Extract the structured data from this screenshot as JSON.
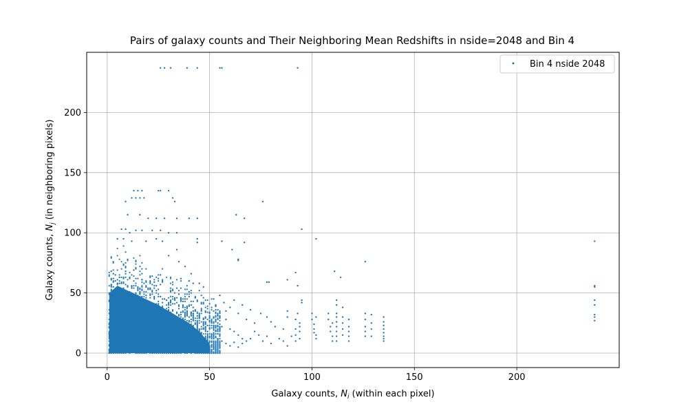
{
  "chart_data": {
    "type": "scatter",
    "title": "Pairs of galaxy counts and Their Neighboring Mean Redshifts in nside=2048 and Bin 4",
    "xlabel_main": "Galaxy counts, ",
    "xlabel_sym": "N",
    "xlabel_sub": "i",
    "xlabel_rest": " (within each pixel)",
    "ylabel_main": "Galaxy counts, ",
    "ylabel_sym": "N",
    "ylabel_sub": "j",
    "ylabel_rest": " (in neighboring pixels)",
    "xlim": [
      -10,
      250
    ],
    "ylim": [
      -12,
      250
    ],
    "xticks": [
      0,
      50,
      100,
      150,
      200
    ],
    "yticks": [
      0,
      50,
      100,
      150,
      200
    ],
    "grid": true,
    "legend_position": "top-right",
    "color": "#1f77b4",
    "series": [
      {
        "name": "Bin 4 nside 2048",
        "dense_regions": [
          {
            "x": [
              1,
              50
            ],
            "y": [
              0,
              "decreasing from 50 at x=1 to 0 at x=50"
            ],
            "note": "solid filled cloud"
          }
        ],
        "points": [
          [
            26,
            237
          ],
          [
            28,
            237
          ],
          [
            31,
            237
          ],
          [
            39,
            237
          ],
          [
            44,
            237
          ],
          [
            55,
            237
          ],
          [
            56,
            237
          ],
          [
            93,
            237
          ],
          [
            13,
            135
          ],
          [
            15,
            135
          ],
          [
            17,
            135
          ],
          [
            25,
            135
          ],
          [
            26,
            135
          ],
          [
            30,
            135
          ],
          [
            12,
            129
          ],
          [
            14,
            129
          ],
          [
            16,
            129
          ],
          [
            18,
            129
          ],
          [
            32,
            129
          ],
          [
            33,
            126
          ],
          [
            9,
            126
          ],
          [
            76,
            126
          ],
          [
            10,
            115
          ],
          [
            16,
            115
          ],
          [
            20,
            112
          ],
          [
            24,
            112
          ],
          [
            28,
            112
          ],
          [
            34,
            112
          ],
          [
            40,
            112
          ],
          [
            44,
            112
          ],
          [
            63,
            115
          ],
          [
            67,
            112
          ],
          [
            95,
            103
          ],
          [
            7,
            103
          ],
          [
            9,
            103
          ],
          [
            11,
            100
          ],
          [
            14,
            102
          ],
          [
            17,
            102
          ],
          [
            22,
            102
          ],
          [
            26,
            102
          ],
          [
            30,
            100
          ],
          [
            34,
            100
          ],
          [
            5,
            95
          ],
          [
            8,
            95
          ],
          [
            12,
            93
          ],
          [
            19,
            93
          ],
          [
            24,
            95
          ],
          [
            27,
            93
          ],
          [
            44,
            95
          ],
          [
            44,
            92
          ],
          [
            56,
            93
          ],
          [
            61,
            86
          ],
          [
            67,
            92
          ],
          [
            102,
            95
          ],
          [
            238,
            93
          ],
          [
            64,
            78
          ],
          [
            64,
            77
          ],
          [
            92,
            67
          ],
          [
            111,
            68
          ],
          [
            114,
            63
          ],
          [
            126,
            76
          ],
          [
            78,
            59
          ],
          [
            79,
            59
          ],
          [
            88,
            61
          ],
          [
            93,
            56
          ],
          [
            238,
            56
          ],
          [
            238,
            55
          ],
          [
            238,
            44
          ],
          [
            238,
            40
          ],
          [
            238,
            32
          ],
          [
            238,
            30
          ],
          [
            238,
            27
          ],
          [
            35,
            76
          ],
          [
            38,
            72
          ],
          [
            41,
            66
          ],
          [
            45,
            58
          ],
          [
            47,
            55
          ],
          [
            34,
            86
          ],
          [
            30,
            81
          ],
          [
            36,
            62
          ],
          [
            40,
            60
          ],
          [
            42,
            58
          ],
          [
            3,
            55
          ],
          [
            2,
            48
          ],
          [
            4,
            60
          ],
          [
            6,
            63
          ],
          [
            5,
            58
          ],
          [
            3,
            52
          ],
          [
            52,
            45
          ],
          [
            53,
            40
          ],
          [
            55,
            48
          ],
          [
            57,
            42
          ],
          [
            58,
            35
          ],
          [
            60,
            38
          ],
          [
            62,
            44
          ],
          [
            64,
            33
          ],
          [
            66,
            40
          ],
          [
            68,
            28
          ],
          [
            70,
            36
          ],
          [
            72,
            25
          ],
          [
            75,
            33
          ],
          [
            78,
            30
          ],
          [
            80,
            26
          ],
          [
            82,
            22
          ],
          [
            86,
            20
          ],
          [
            88,
            30
          ],
          [
            88,
            35
          ],
          [
            52,
            30
          ],
          [
            54,
            25
          ],
          [
            56,
            22
          ],
          [
            58,
            28
          ],
          [
            60,
            20
          ],
          [
            62,
            18
          ],
          [
            64,
            15
          ],
          [
            66,
            12
          ],
          [
            68,
            10
          ],
          [
            52,
            15
          ],
          [
            54,
            12
          ],
          [
            56,
            10
          ],
          [
            58,
            8
          ],
          [
            60,
            6
          ],
          [
            62,
            9
          ],
          [
            64,
            5
          ],
          [
            66,
            8
          ],
          [
            70,
            12
          ],
          [
            72,
            18
          ],
          [
            74,
            15
          ],
          [
            76,
            10
          ],
          [
            78,
            14
          ],
          [
            80,
            8
          ],
          [
            84,
            12
          ],
          [
            86,
            10
          ],
          [
            88,
            6
          ],
          [
            90,
            14
          ],
          [
            92,
            28
          ],
          [
            92,
            20
          ],
          [
            92,
            15
          ],
          [
            92,
            10
          ],
          [
            93,
            33
          ],
          [
            94,
            22
          ],
          [
            94,
            18
          ],
          [
            94,
            12
          ],
          [
            94,
            25
          ],
          [
            95,
            44
          ],
          [
            95,
            42
          ],
          [
            100,
            33
          ],
          [
            100,
            28
          ],
          [
            101,
            24
          ],
          [
            101,
            20
          ],
          [
            101,
            17
          ],
          [
            102,
            15
          ],
          [
            102,
            12
          ],
          [
            102,
            30
          ],
          [
            108,
            33
          ],
          [
            108,
            28
          ],
          [
            109,
            22
          ],
          [
            109,
            18
          ],
          [
            110,
            14
          ],
          [
            110,
            10
          ],
          [
            110,
            25
          ],
          [
            112,
            44
          ],
          [
            112,
            40
          ],
          [
            112,
            33
          ],
          [
            112,
            30
          ],
          [
            112,
            26
          ],
          [
            112,
            22
          ],
          [
            112,
            18
          ],
          [
            112,
            14
          ],
          [
            112,
            10
          ],
          [
            115,
            38
          ],
          [
            115,
            30
          ],
          [
            115,
            25
          ],
          [
            115,
            20
          ],
          [
            115,
            15
          ],
          [
            118,
            28
          ],
          [
            118,
            22
          ],
          [
            118,
            18
          ],
          [
            118,
            14
          ],
          [
            118,
            10
          ],
          [
            126,
            33
          ],
          [
            126,
            28
          ],
          [
            126,
            22
          ],
          [
            126,
            18
          ],
          [
            126,
            14
          ],
          [
            129,
            32
          ],
          [
            129,
            25
          ],
          [
            129,
            20
          ],
          [
            129,
            14
          ],
          [
            135,
            30
          ],
          [
            135,
            26
          ],
          [
            135,
            23
          ],
          [
            135,
            20
          ],
          [
            135,
            17
          ],
          [
            135,
            14
          ],
          [
            135,
            12
          ],
          [
            135,
            10
          ]
        ]
      }
    ]
  }
}
